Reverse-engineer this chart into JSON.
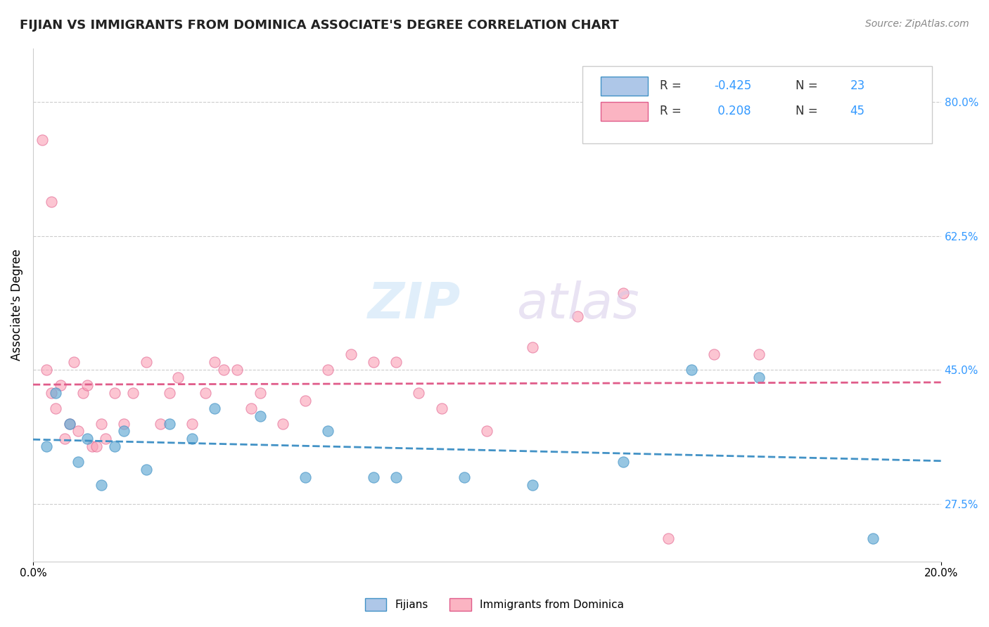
{
  "title": "FIJIAN VS IMMIGRANTS FROM DOMINICA ASSOCIATE'S DEGREE CORRELATION CHART",
  "source": "Source: ZipAtlas.com",
  "ylabel": "Associate's Degree",
  "xlim": [
    0.0,
    20.0
  ],
  "ylim": [
    20.0,
    87.0
  ],
  "x_ticks": [
    0.0,
    20.0
  ],
  "x_tick_labels": [
    "0.0%",
    "20.0%"
  ],
  "y_ticks_right": [
    27.5,
    45.0,
    62.5,
    80.0
  ],
  "y_tick_labels_right": [
    "27.5%",
    "45.0%",
    "62.5%",
    "80.0%"
  ],
  "grid_color": "#cccccc",
  "background": "#ffffff",
  "blue_color": "#6baed6",
  "pink_color": "#fa9fb5",
  "blue_fill": "#aec7e8",
  "pink_fill": "#fbb4c2",
  "trend_blue": "#4292c6",
  "trend_pink": "#e05c8a",
  "fijians_x": [
    0.3,
    0.5,
    0.8,
    1.0,
    1.2,
    1.5,
    1.8,
    2.0,
    2.5,
    3.0,
    3.5,
    4.0,
    5.0,
    6.0,
    6.5,
    7.5,
    8.0,
    9.5,
    11.0,
    13.0,
    14.5,
    16.0,
    18.5
  ],
  "fijians_y": [
    35.0,
    42.0,
    38.0,
    33.0,
    36.0,
    30.0,
    35.0,
    37.0,
    32.0,
    38.0,
    36.0,
    40.0,
    39.0,
    31.0,
    37.0,
    31.0,
    31.0,
    31.0,
    30.0,
    33.0,
    45.0,
    44.0,
    23.0
  ],
  "dominica_x": [
    0.2,
    0.4,
    0.4,
    0.5,
    0.6,
    0.7,
    0.8,
    0.9,
    1.0,
    1.1,
    1.2,
    1.3,
    1.4,
    1.5,
    1.6,
    1.8,
    2.0,
    2.2,
    2.5,
    2.8,
    3.0,
    3.2,
    3.5,
    3.8,
    4.0,
    4.2,
    4.5,
    4.8,
    5.0,
    5.5,
    6.0,
    6.5,
    7.0,
    7.5,
    8.0,
    8.5,
    9.0,
    10.0,
    11.0,
    12.0,
    13.0,
    14.0,
    15.0,
    16.0,
    0.3
  ],
  "dominica_y": [
    75.0,
    67.0,
    42.0,
    40.0,
    43.0,
    36.0,
    38.0,
    46.0,
    37.0,
    42.0,
    43.0,
    35.0,
    35.0,
    38.0,
    36.0,
    42.0,
    38.0,
    42.0,
    46.0,
    38.0,
    42.0,
    44.0,
    38.0,
    42.0,
    46.0,
    45.0,
    45.0,
    40.0,
    42.0,
    38.0,
    41.0,
    45.0,
    47.0,
    46.0,
    46.0,
    42.0,
    40.0,
    37.0,
    48.0,
    52.0,
    55.0,
    23.0,
    47.0,
    47.0,
    45.0
  ]
}
